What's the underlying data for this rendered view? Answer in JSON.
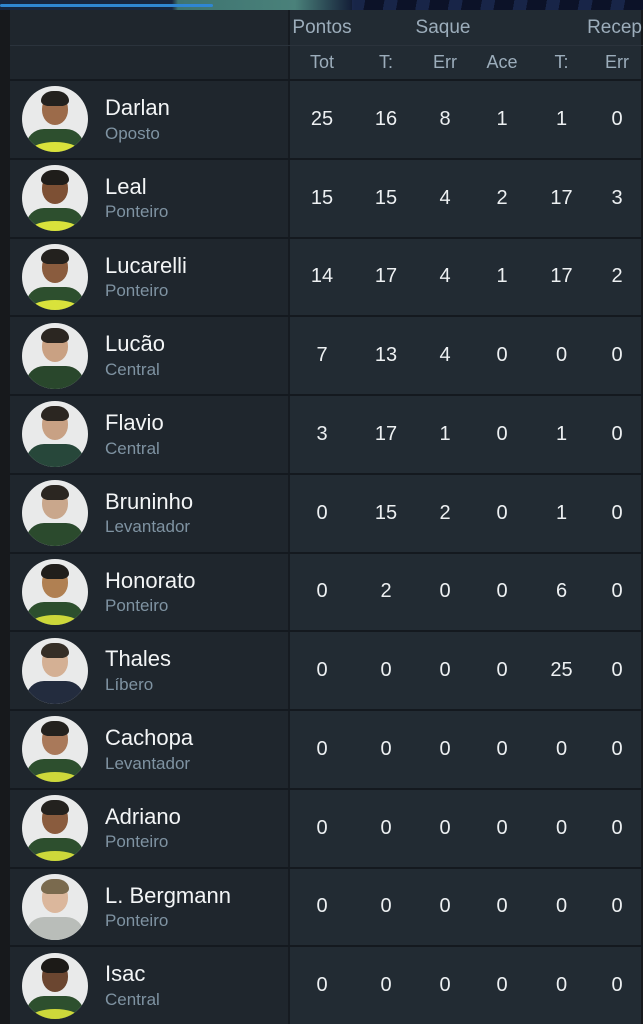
{
  "banner": {
    "accent_blue_line": "#2f86d2",
    "teal_segment": "#4a817a",
    "navy_segment": "#0c1228"
  },
  "table": {
    "group_headers": [
      {
        "label": "Pontos"
      },
      {
        "label": "Saque"
      },
      {
        "label": "Recep"
      }
    ],
    "sub_headers": [
      "Tot",
      "T:",
      "Err",
      "Ace",
      "T:",
      "Err"
    ],
    "players": [
      {
        "name": "Darlan",
        "position": "Oposto",
        "stats": [
          25,
          16,
          8,
          1,
          1,
          0
        ],
        "avatar": {
          "skin": "#9c6b4a",
          "hair": "#23211e",
          "jersey": "#2d4f2e",
          "trim": true,
          "trim_color": "#d9e23b"
        }
      },
      {
        "name": "Leal",
        "position": "Ponteiro",
        "stats": [
          15,
          15,
          4,
          2,
          17,
          3
        ],
        "avatar": {
          "skin": "#7d5034",
          "hair": "#1f1d1a",
          "jersey": "#2d4f2e",
          "trim": true,
          "trim_color": "#d9e23b"
        }
      },
      {
        "name": "Lucarelli",
        "position": "Ponteiro",
        "stats": [
          14,
          17,
          4,
          1,
          17,
          2
        ],
        "avatar": {
          "skin": "#8a5c3e",
          "hair": "#23211e",
          "jersey": "#2d4f2e",
          "trim": true,
          "trim_color": "#d9e23b"
        }
      },
      {
        "name": "Lucão",
        "position": "Central",
        "stats": [
          7,
          13,
          4,
          0,
          0,
          0
        ],
        "avatar": {
          "skin": "#c9a183",
          "hair": "#2b2621",
          "jersey": "#29472c",
          "trim": false,
          "trim_color": "#d9e23b"
        }
      },
      {
        "name": "Flavio",
        "position": "Central",
        "stats": [
          3,
          17,
          1,
          0,
          1,
          0
        ],
        "avatar": {
          "skin": "#c8a184",
          "hair": "#2b2621",
          "jersey": "#27473a",
          "trim": false,
          "trim_color": "#d9e23b"
        }
      },
      {
        "name": "Bruninho",
        "position": "Levantador",
        "stats": [
          0,
          15,
          2,
          0,
          1,
          0
        ],
        "avatar": {
          "skin": "#c9a78c",
          "hair": "#2b2621",
          "jersey": "#2b4a2d",
          "trim": false,
          "trim_color": "#d9e23b"
        }
      },
      {
        "name": "Honorato",
        "position": "Ponteiro",
        "stats": [
          0,
          2,
          0,
          0,
          6,
          0
        ],
        "avatar": {
          "skin": "#b08052",
          "hair": "#201e1b",
          "jersey": "#2d4f2e",
          "trim": true,
          "trim_color": "#cdd83a"
        }
      },
      {
        "name": "Thales",
        "position": "Líbero",
        "stats": [
          0,
          0,
          0,
          0,
          25,
          0
        ],
        "avatar": {
          "skin": "#d4b094",
          "hair": "#352e26",
          "jersey": "#232c3e",
          "trim": false,
          "trim_color": "#d9e23b"
        }
      },
      {
        "name": "Cachopa",
        "position": "Levantador",
        "stats": [
          0,
          0,
          0,
          0,
          0,
          0
        ],
        "avatar": {
          "skin": "#a9795a",
          "hair": "#23211e",
          "jersey": "#2d4f2e",
          "trim": true,
          "trim_color": "#cdd83a"
        }
      },
      {
        "name": "Adriano",
        "position": "Ponteiro",
        "stats": [
          0,
          0,
          0,
          0,
          0,
          0
        ],
        "avatar": {
          "skin": "#8a5c3e",
          "hair": "#23211e",
          "jersey": "#2d4f2e",
          "trim": true,
          "trim_color": "#cdd83a"
        }
      },
      {
        "name": "L. Bergmann",
        "position": "Ponteiro",
        "stats": [
          0,
          0,
          0,
          0,
          0,
          0
        ],
        "avatar": {
          "skin": "#dbb79c",
          "hair": "#7a6a4e",
          "jersey": "#b9bdb9",
          "trim": false,
          "trim_color": "#d9e23b"
        }
      },
      {
        "name": "Isac",
        "position": "Central",
        "stats": [
          0,
          0,
          0,
          0,
          0,
          0
        ],
        "avatar": {
          "skin": "#6b4630",
          "hair": "#1c1a17",
          "jersey": "#2d4f2e",
          "trim": true,
          "trim_color": "#cdd83a"
        }
      }
    ]
  }
}
